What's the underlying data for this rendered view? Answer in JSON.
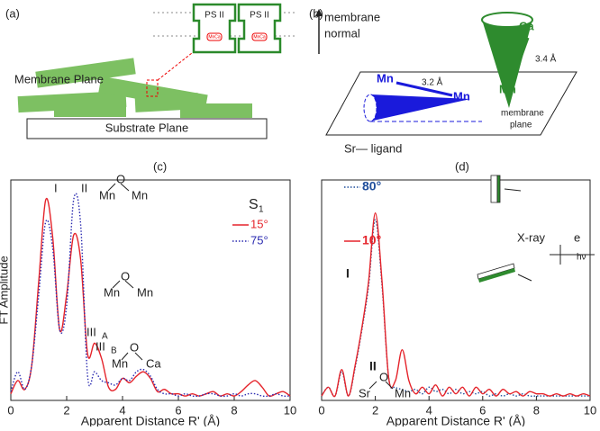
{
  "panels": {
    "a": "(a)",
    "b": "(b)",
    "c": "(c)",
    "d": "(d)"
  },
  "diagram_a": {
    "membrane": "Membrane Plane",
    "substrate": "Substrate Plane",
    "ps1": "PS II",
    "ps2": "PS II",
    "mn1": "MnCa",
    "mn2": "MnCa"
  },
  "diagram_b": {
    "normal1": "membrane",
    "normal2": "normal",
    "ca": "Ca",
    "d1": "3.4 Å",
    "mnTop": "Mn",
    "mnLeft": "Mn",
    "mnRight": "Mn",
    "d2": "3.2 Å",
    "plane1": "membrane",
    "plane2": "plane"
  },
  "chart_data": [
    {
      "type": "line",
      "xlabel": "Apparent Distance R' (Å)",
      "ylabel": "FT Amplitude",
      "xlim": [
        0,
        10
      ],
      "xticks": [
        0,
        2,
        4,
        6,
        8,
        10
      ],
      "ylim": [
        0,
        10
      ],
      "legend_title": [
        "S",
        "1"
      ],
      "annotations": [
        "I",
        "II",
        "Mn",
        "O",
        "Mn",
        "Mn",
        "O",
        "Mn",
        "III",
        "A",
        "III",
        "B",
        "Mn",
        "O",
        "Ca"
      ],
      "x": [
        0,
        0.25,
        0.5,
        0.75,
        1,
        1.25,
        1.5,
        1.75,
        2,
        2.25,
        2.5,
        2.75,
        3,
        3.25,
        3.5,
        3.75,
        4,
        4.25,
        4.5,
        4.75,
        5,
        5.25,
        5.5,
        5.75,
        6,
        6.25,
        6.5,
        6.75,
        7,
        7.25,
        7.5,
        7.75,
        8,
        8.25,
        8.5,
        8.75,
        9,
        9.25,
        9.5,
        9.75,
        10
      ],
      "series": [
        {
          "name": "15°",
          "color": "#e5242b",
          "dash": false,
          "values": [
            0.3,
            0.9,
            0.5,
            1.6,
            5.4,
            9.1,
            7.4,
            3.2,
            4.8,
            7.5,
            6.4,
            2.1,
            2.6,
            1.9,
            0.6,
            0.5,
            1,
            0.8,
            1.1,
            1.3,
            1,
            0.4,
            0.5,
            0.3,
            0.3,
            0.2,
            0.3,
            0.2,
            0.3,
            0.4,
            0.2,
            0.3,
            0.2,
            0.4,
            0.7,
            0.9,
            0.6,
            0.2,
            0.3,
            0.4,
            0.2
          ]
        },
        {
          "name": "75°",
          "color": "#2a2ab0",
          "dash": true,
          "values": [
            0.4,
            1.3,
            0.5,
            1.6,
            4.8,
            8.1,
            6.9,
            3.2,
            4.3,
            9.1,
            8,
            1.1,
            1.3,
            0.9,
            0.8,
            0.7,
            1,
            0.9,
            1.3,
            1.4,
            1.1,
            0.5,
            0.3,
            0.3,
            0.2,
            0.3,
            0.2,
            0.2,
            0.3,
            0.3,
            0.2,
            0.2,
            0.3,
            0.2,
            0.3,
            0.3,
            0.2,
            0.2,
            0.3,
            0.2,
            0.2
          ]
        }
      ]
    },
    {
      "type": "line",
      "xlabel": "Apparent Distance R' (Å)",
      "xlim": [
        0,
        10
      ],
      "xticks": [
        0,
        2,
        4,
        6,
        8,
        10
      ],
      "ylim": [
        0,
        10
      ],
      "annotations": [
        "Sr— ligand",
        "I",
        "II",
        "Sr",
        "O",
        "Mn",
        "X-ray",
        "e",
        "hν"
      ],
      "x": [
        0,
        0.25,
        0.5,
        0.75,
        1,
        1.25,
        1.5,
        1.75,
        2,
        2.25,
        2.5,
        2.75,
        3,
        3.25,
        3.5,
        3.75,
        4,
        4.25,
        4.5,
        4.75,
        5,
        5.25,
        5.5,
        5.75,
        6,
        6.25,
        6.5,
        6.75,
        7,
        7.25,
        7.5,
        7.75,
        8,
        8.25,
        8.5,
        8.75,
        9,
        9.25,
        9.5,
        9.75,
        10
      ],
      "series": [
        {
          "name": "80°",
          "color": "#1f4e9c",
          "dash": true,
          "values": [
            0.2,
            0.6,
            0.2,
            1.3,
            0.2,
            1.5,
            3.2,
            5.2,
            8.2,
            5.2,
            1,
            0.6,
            0.5,
            0.4,
            0.5,
            0.3,
            0.6,
            0.4,
            0.5,
            0.3,
            0.5,
            0.3,
            0.4,
            0.3,
            0.4,
            0.2,
            0.3,
            0.2,
            0.3,
            0.2,
            0.3,
            0.2,
            0.2,
            0.2,
            0.2,
            0.2,
            0.2,
            0.2,
            0.2,
            0.2,
            0.2
          ]
        },
        {
          "name": "10°",
          "color": "#e5242b",
          "dash": false,
          "values": [
            0.2,
            0.6,
            0.2,
            1.4,
            0.2,
            1.6,
            3.3,
            5.4,
            8.5,
            5.4,
            1,
            0.9,
            2.3,
            0.9,
            0.3,
            0.6,
            0.3,
            0.7,
            0.2,
            0.6,
            0.3,
            0.6,
            0.2,
            0.6,
            0.3,
            0.5,
            0.2,
            0.5,
            0.3,
            0.4,
            0.2,
            0.4,
            0.3,
            0.3,
            0.2,
            0.3,
            0.2,
            0.3,
            0.2,
            0.3,
            0.2
          ]
        }
      ]
    }
  ]
}
